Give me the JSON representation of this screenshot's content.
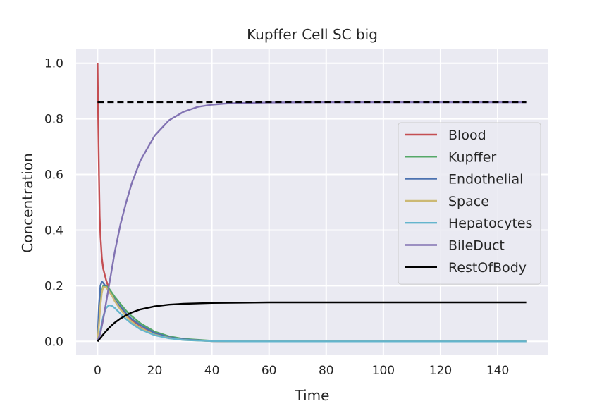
{
  "chart_data": {
    "type": "line",
    "title": "Kupffer Cell SC big",
    "xlabel": "Time",
    "ylabel": "Concentration",
    "xlim": [
      -7.5,
      157.5
    ],
    "ylim": [
      -0.05,
      1.05
    ],
    "xticks": [
      0,
      20,
      40,
      60,
      80,
      100,
      120,
      140
    ],
    "yticks": [
      0.0,
      0.2,
      0.4,
      0.6,
      0.8,
      1.0
    ],
    "xtick_labels": [
      "0",
      "20",
      "40",
      "60",
      "80",
      "100",
      "120",
      "140"
    ],
    "ytick_labels": [
      "0.0",
      "0.2",
      "0.4",
      "0.6",
      "0.8",
      "1.0"
    ],
    "grid": true,
    "background": "#eaeaf2",
    "legend_position": "center-right",
    "reference_line": {
      "y": 0.86,
      "x_range": [
        0,
        150
      ],
      "style": "dashed",
      "color": "#000000"
    },
    "series": [
      {
        "name": "Blood",
        "color": "#c44e52",
        "x": [
          0,
          0.25,
          0.5,
          0.75,
          1,
          1.5,
          2,
          3,
          4,
          5,
          6,
          8,
          10,
          12,
          15,
          20,
          25,
          30,
          40,
          50,
          60,
          80,
          100,
          120,
          150
        ],
        "y": [
          1.0,
          0.78,
          0.6,
          0.45,
          0.38,
          0.3,
          0.26,
          0.22,
          0.19,
          0.17,
          0.15,
          0.12,
          0.095,
          0.075,
          0.05,
          0.025,
          0.012,
          0.006,
          0.001,
          0.0,
          0.0,
          0.0,
          0.0,
          0.0,
          0.0
        ]
      },
      {
        "name": "Kupffer",
        "color": "#55a868",
        "x": [
          0,
          0.5,
          1,
          1.5,
          2,
          3,
          4,
          5,
          6,
          8,
          10,
          12,
          15,
          20,
          25,
          30,
          40,
          50,
          60,
          80,
          100,
          120,
          150
        ],
        "y": [
          0.0,
          0.09,
          0.15,
          0.18,
          0.2,
          0.2,
          0.19,
          0.175,
          0.16,
          0.135,
          0.11,
          0.09,
          0.065,
          0.035,
          0.018,
          0.009,
          0.002,
          0.0,
          0.0,
          0.0,
          0.0,
          0.0,
          0.0
        ]
      },
      {
        "name": "Endothelial",
        "color": "#4c72b0",
        "x": [
          0,
          0.5,
          1,
          1.5,
          2,
          3,
          4,
          5,
          6,
          8,
          10,
          12,
          15,
          20,
          25,
          30,
          40,
          50,
          60,
          80,
          100,
          120,
          150
        ],
        "y": [
          0.0,
          0.13,
          0.2,
          0.215,
          0.21,
          0.195,
          0.18,
          0.165,
          0.15,
          0.125,
          0.1,
          0.08,
          0.058,
          0.03,
          0.015,
          0.007,
          0.001,
          0.0,
          0.0,
          0.0,
          0.0,
          0.0,
          0.0
        ]
      },
      {
        "name": "Space",
        "color": "#ccb974",
        "x": [
          0,
          0.5,
          1,
          1.5,
          2,
          3,
          4,
          5,
          6,
          8,
          10,
          12,
          15,
          20,
          25,
          30,
          40,
          50,
          60,
          80,
          100,
          120,
          150
        ],
        "y": [
          0.0,
          0.06,
          0.13,
          0.175,
          0.195,
          0.195,
          0.18,
          0.165,
          0.145,
          0.115,
          0.09,
          0.07,
          0.048,
          0.024,
          0.012,
          0.005,
          0.001,
          0.0,
          0.0,
          0.0,
          0.0,
          0.0,
          0.0
        ]
      },
      {
        "name": "Hepatocytes",
        "color": "#64b5cd",
        "x": [
          0,
          0.5,
          1,
          2,
          3,
          4,
          5,
          6,
          8,
          10,
          12,
          15,
          20,
          25,
          30,
          40,
          50,
          60,
          80,
          100,
          120,
          150
        ],
        "y": [
          0.0,
          0.015,
          0.04,
          0.09,
          0.12,
          0.13,
          0.128,
          0.12,
          0.1,
          0.08,
          0.063,
          0.043,
          0.022,
          0.011,
          0.005,
          0.001,
          0.0,
          0.0,
          0.0,
          0.0,
          0.0,
          0.0
        ]
      },
      {
        "name": "BileDuct",
        "color": "#8172b2",
        "x": [
          0,
          1,
          2,
          3,
          4,
          5,
          6,
          8,
          10,
          12,
          15,
          20,
          25,
          30,
          35,
          40,
          45,
          50,
          60,
          80,
          100,
          120,
          150
        ],
        "y": [
          0.0,
          0.03,
          0.08,
          0.14,
          0.2,
          0.26,
          0.32,
          0.42,
          0.5,
          0.57,
          0.65,
          0.74,
          0.795,
          0.825,
          0.843,
          0.851,
          0.855,
          0.857,
          0.859,
          0.86,
          0.86,
          0.86,
          0.86
        ]
      },
      {
        "name": "RestOfBody",
        "color": "#000000",
        "x": [
          0,
          1,
          2,
          3,
          4,
          5,
          6,
          8,
          10,
          12,
          15,
          20,
          25,
          30,
          40,
          50,
          60,
          80,
          100,
          120,
          150
        ],
        "y": [
          0.0,
          0.012,
          0.025,
          0.037,
          0.048,
          0.058,
          0.067,
          0.082,
          0.094,
          0.104,
          0.115,
          0.126,
          0.132,
          0.135,
          0.138,
          0.139,
          0.14,
          0.14,
          0.14,
          0.14,
          0.14
        ]
      }
    ]
  }
}
